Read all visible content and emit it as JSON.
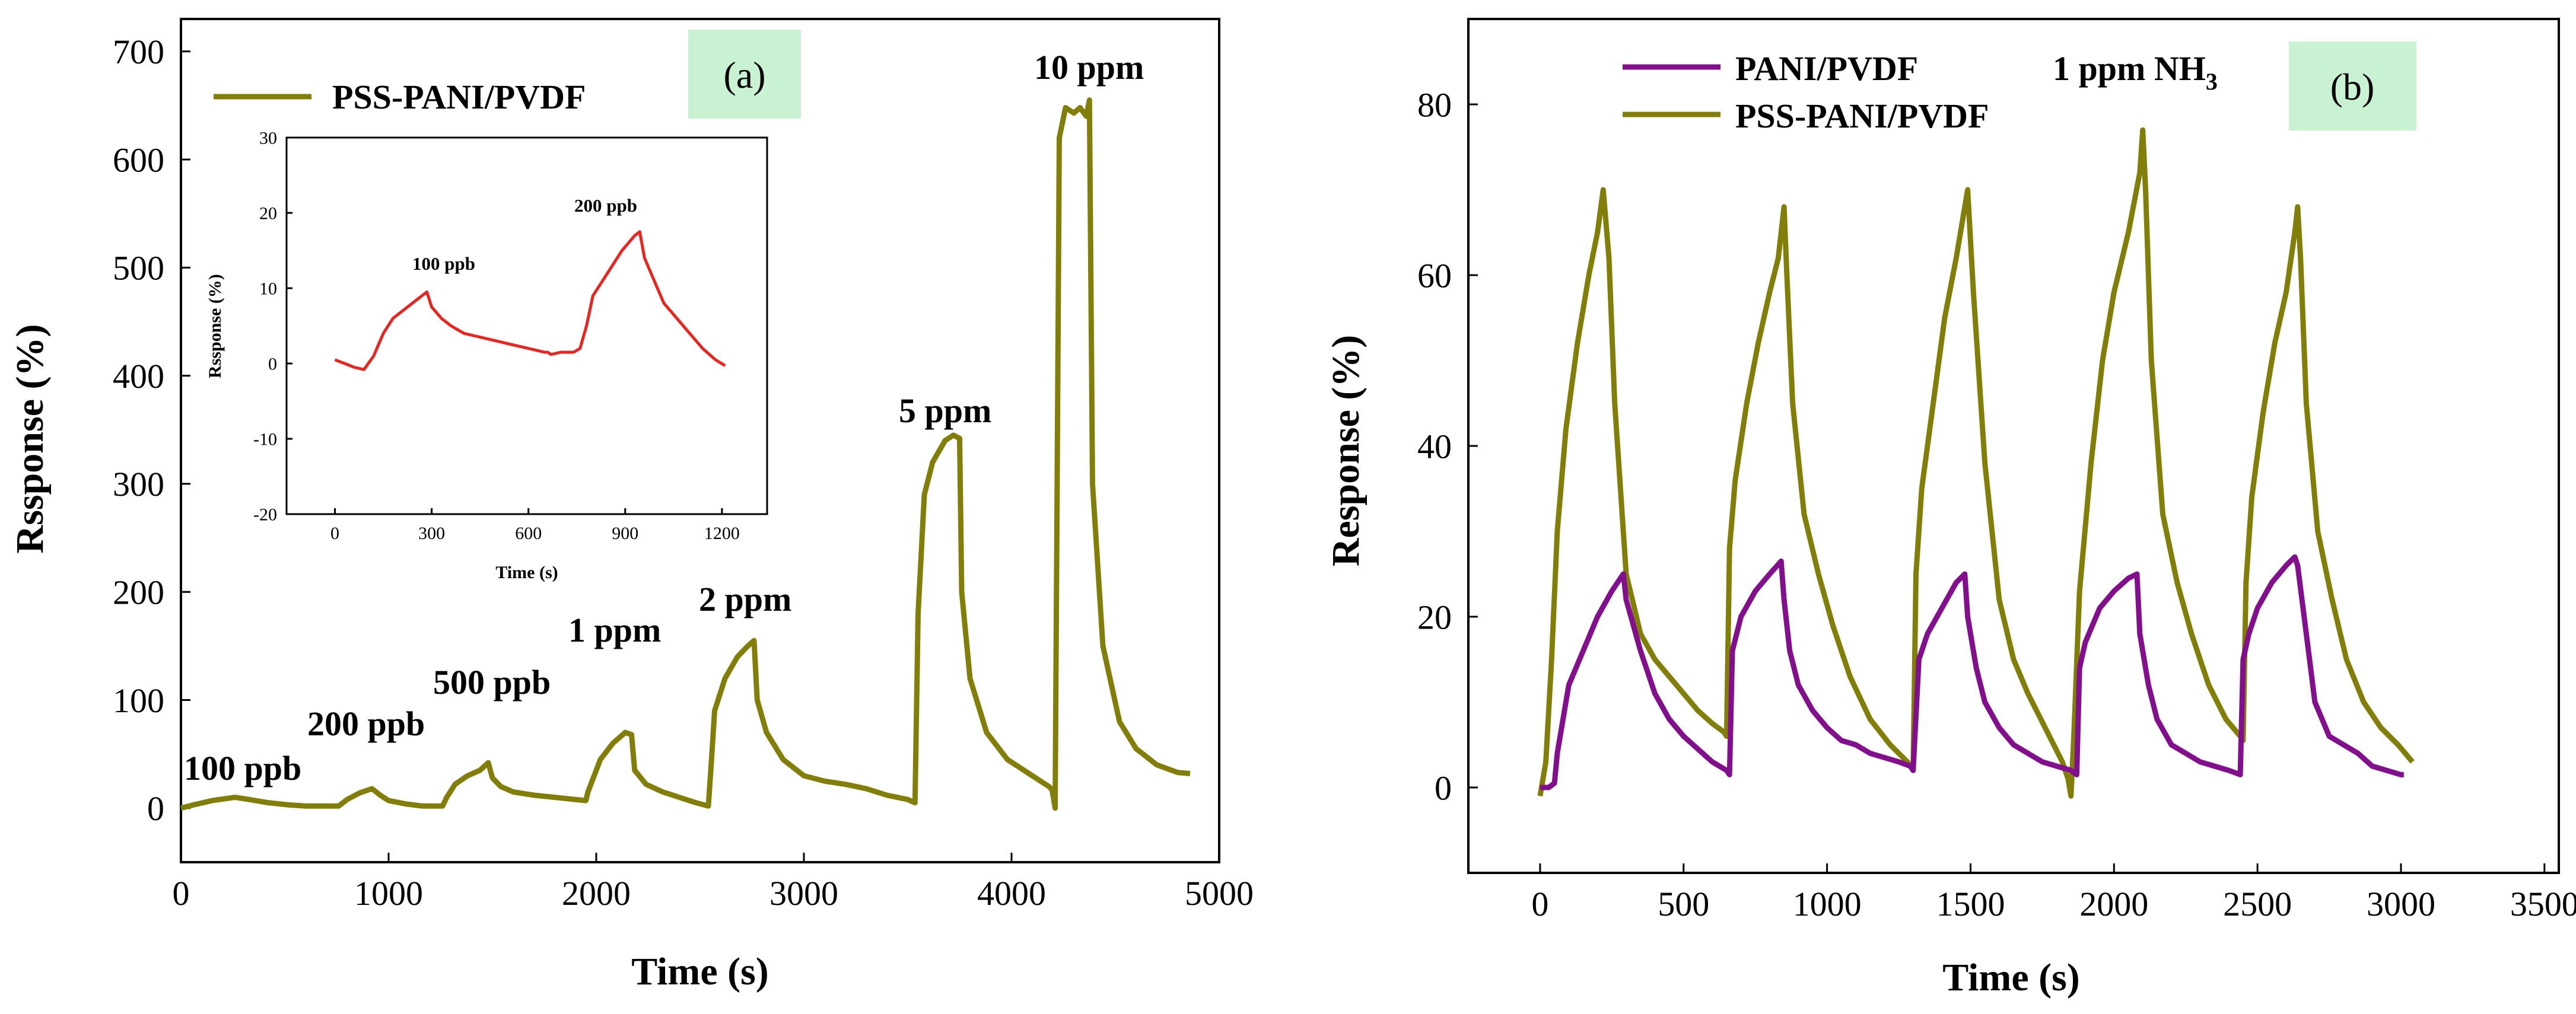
{
  "chart_data": [
    {
      "panel": "(a)",
      "type": "line",
      "xlabel": "Time (s)",
      "ylabel": "Rssponse (%)",
      "xlim": [
        0,
        5000
      ],
      "ylim": [
        -50,
        730
      ],
      "xticks": [
        0,
        1000,
        2000,
        3000,
        4000,
        5000
      ],
      "yticks": [
        0,
        100,
        200,
        300,
        400,
        500,
        600,
        700
      ],
      "colors": {
        "series": "#827e0a"
      },
      "legend": "top-left",
      "series": [
        {
          "name": "PSS-PANI/PVDF",
          "x": [
            0,
            60,
            150,
            260,
            330,
            420,
            520,
            600,
            700,
            760,
            800,
            860,
            920,
            960,
            1000,
            1080,
            1160,
            1260,
            1280,
            1320,
            1380,
            1440,
            1480,
            1500,
            1540,
            1600,
            1700,
            1800,
            1900,
            1950,
            1960,
            2020,
            2080,
            2140,
            2170,
            2185,
            2240,
            2320,
            2400,
            2480,
            2540,
            2555,
            2570,
            2620,
            2680,
            2730,
            2760,
            2775,
            2820,
            2900,
            3000,
            3100,
            3200,
            3300,
            3400,
            3500,
            3535,
            3550,
            3580,
            3620,
            3680,
            3720,
            3750,
            3760,
            3800,
            3880,
            3980,
            4100,
            4180,
            4195,
            4210,
            4230,
            4260,
            4300,
            4330,
            4360,
            4375,
            4390,
            4440,
            4520,
            4600,
            4700,
            4800,
            4860
          ],
          "y": [
            0,
            3,
            7,
            10,
            8,
            5,
            3,
            2,
            2,
            2,
            8,
            14,
            18,
            12,
            7,
            4,
            2,
            2,
            10,
            22,
            30,
            35,
            42,
            28,
            20,
            15,
            12,
            10,
            8,
            7,
            15,
            45,
            60,
            70,
            68,
            35,
            22,
            15,
            10,
            5,
            2,
            45,
            90,
            120,
            140,
            150,
            155,
            100,
            70,
            45,
            30,
            25,
            22,
            18,
            12,
            8,
            5,
            180,
            290,
            320,
            340,
            345,
            342,
            200,
            120,
            70,
            45,
            30,
            20,
            17,
            0,
            620,
            648,
            643,
            648,
            640,
            655,
            300,
            150,
            80,
            55,
            40,
            33,
            32
          ]
        }
      ],
      "annotations": [
        "100 ppb",
        "200 ppb",
        "500 ppb",
        "1 ppm",
        "2 ppm",
        "5 ppm",
        "10 ppm"
      ],
      "inset": {
        "type": "line",
        "xlabel": "Time (s)",
        "ylabel": "Rssponse (%)",
        "xlim": [
          -150,
          1340
        ],
        "ylim": [
          -20,
          30
        ],
        "xticks": [
          0,
          300,
          600,
          900,
          1200
        ],
        "yticks": [
          -20,
          -10,
          0,
          10,
          20,
          30
        ],
        "colors": {
          "series": "#e8261f"
        },
        "series": [
          {
            "name": "inset",
            "x": [
              0,
              30,
              60,
              90,
              120,
              150,
              180,
              210,
              240,
              270,
              285,
              300,
              330,
              360,
              400,
              450,
              500,
              550,
              600,
              650,
              660,
              670,
              700,
              740,
              760,
              780,
              800,
              830,
              860,
              890,
              910,
              930,
              945,
              960,
              990,
              1020,
              1060,
              1100,
              1140,
              1180,
              1210
            ],
            "y": [
              0.5,
              0,
              -0.5,
              -0.8,
              1,
              4,
              6,
              7,
              8,
              9,
              9.5,
              7.5,
              6,
              5,
              4,
              3.5,
              3,
              2.5,
              2,
              1.5,
              1.5,
              1.2,
              1.5,
              1.5,
              2,
              5,
              9,
              11,
              13,
              15,
              16,
              17,
              17.5,
              14,
              11,
              8,
              6,
              4,
              2,
              0.5,
              -0.3
            ]
          }
        ],
        "annotations": [
          "100 ppb",
          "200 ppb"
        ]
      },
      "tag_color": "#c9f2d2"
    },
    {
      "panel": "(b)",
      "type": "line",
      "xlabel": "Time (s)",
      "ylabel": "Response (%)",
      "xlim": [
        -250,
        3550
      ],
      "ylim": [
        -10,
        90
      ],
      "xticks": [
        0,
        500,
        1000,
        1500,
        2000,
        2500,
        3000,
        3500
      ],
      "yticks": [
        0,
        20,
        40,
        60,
        80
      ],
      "legend": "top-left",
      "title_annotation_main": "1 ppm NH",
      "title_annotation_sub": "3",
      "series": [
        {
          "name": "PANI/PVDF",
          "color": "#820f8b",
          "x": [
            0,
            30,
            50,
            60,
            80,
            100,
            150,
            200,
            250,
            290,
            300,
            350,
            400,
            450,
            500,
            550,
            600,
            650,
            660,
            670,
            700,
            750,
            800,
            840,
            850,
            870,
            900,
            950,
            1000,
            1050,
            1100,
            1150,
            1200,
            1250,
            1290,
            1300,
            1320,
            1350,
            1400,
            1450,
            1480,
            1490,
            1520,
            1550,
            1600,
            1650,
            1700,
            1750,
            1800,
            1850,
            1870,
            1880,
            1900,
            1950,
            2000,
            2050,
            2080,
            2090,
            2120,
            2150,
            2200,
            2250,
            2300,
            2350,
            2400,
            2440,
            2450,
            2470,
            2500,
            2550,
            2600,
            2630,
            2640,
            2670,
            2700,
            2750,
            2800,
            2850,
            2900,
            2950,
            3000,
            3010
          ],
          "y": [
            0,
            0,
            0.5,
            4,
            8,
            12,
            16,
            20,
            23,
            25,
            22,
            16,
            11,
            8,
            6,
            4.5,
            3,
            2,
            1.5,
            16,
            20,
            23,
            25,
            26.5,
            22,
            16,
            12,
            9,
            7,
            5.5,
            5,
            4,
            3.5,
            3,
            2.5,
            2,
            15,
            18,
            21,
            24,
            25,
            20,
            14,
            10,
            7,
            5,
            4,
            3,
            2.5,
            2,
            1.5,
            14,
            17,
            21,
            23,
            24.5,
            25,
            18,
            12,
            8,
            5,
            4,
            3,
            2.5,
            2,
            1.5,
            15,
            18,
            21,
            24,
            26,
            27,
            26,
            18,
            10,
            6,
            5,
            4,
            2.5,
            2,
            1.5,
            1.5
          ]
        },
        {
          "name": "PSS-PANI/PVDF",
          "color": "#827e0a",
          "x": [
            0,
            20,
            40,
            60,
            90,
            130,
            170,
            200,
            220,
            240,
            260,
            300,
            350,
            400,
            450,
            500,
            550,
            600,
            640,
            650,
            660,
            680,
            720,
            760,
            800,
            830,
            850,
            860,
            880,
            920,
            970,
            1020,
            1080,
            1150,
            1220,
            1280,
            1300,
            1310,
            1330,
            1370,
            1410,
            1450,
            1480,
            1490,
            1510,
            1550,
            1600,
            1650,
            1700,
            1760,
            1820,
            1840,
            1850,
            1860,
            1880,
            1920,
            1960,
            2000,
            2050,
            2090,
            2100,
            2110,
            2130,
            2170,
            2220,
            2270,
            2330,
            2390,
            2440,
            2450,
            2460,
            2480,
            2520,
            2560,
            2600,
            2630,
            2640,
            2650,
            2670,
            2710,
            2760,
            2810,
            2870,
            2930,
            2990,
            3040
          ],
          "y": [
            -1,
            3,
            15,
            30,
            42,
            52,
            60,
            65,
            70,
            62,
            45,
            25,
            18,
            15,
            13,
            11,
            9,
            7.5,
            6.5,
            6,
            28,
            36,
            45,
            52,
            58,
            62,
            68,
            60,
            45,
            32,
            25,
            19,
            13,
            8,
            5,
            3,
            2,
            25,
            35,
            45,
            55,
            62,
            68,
            70,
            58,
            38,
            22,
            15,
            11,
            7,
            3,
            1,
            -1,
            6,
            23,
            38,
            50,
            58,
            65,
            72,
            77,
            70,
            50,
            32,
            24,
            18,
            12,
            8,
            6,
            5.5,
            24,
            34,
            44,
            52,
            58,
            65,
            68,
            62,
            45,
            30,
            22,
            15,
            10,
            7,
            5,
            3
          ]
        }
      ],
      "tag_color": "#c9f2d2"
    }
  ]
}
